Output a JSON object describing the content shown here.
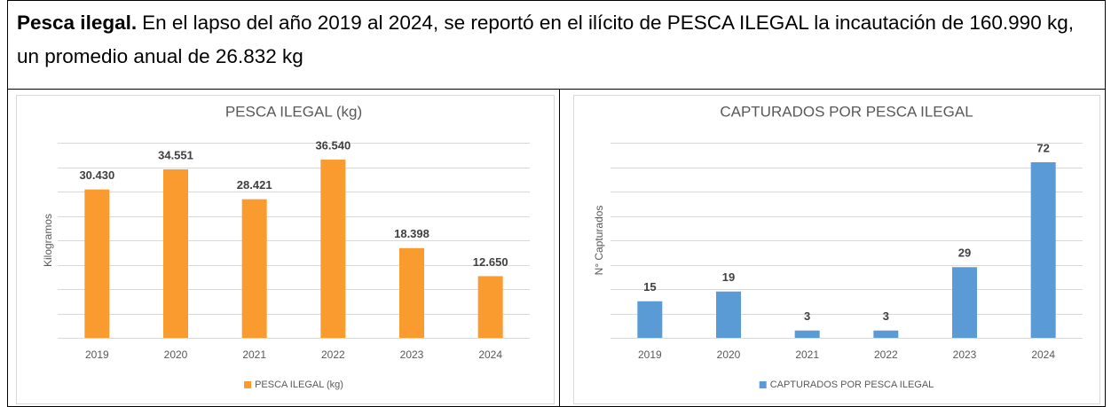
{
  "text": {
    "bold": "Pesca ilegal.",
    "body": "En el lapso del año 2019 al 2024, se reportó en el ilícito de PESCA ILEGAL la incautación de 160.990 kg, un promedio anual de 26.832 kg"
  },
  "chart_data": [
    {
      "type": "bar",
      "title": "PESCA ILEGAL (kg)",
      "y_label": "Kilogramos",
      "categories": [
        "2019",
        "2020",
        "2021",
        "2022",
        "2023",
        "2024"
      ],
      "series": [
        {
          "name": "PESCA ILEGAL (kg)",
          "color": "#f99b2e",
          "values": [
            30430,
            34551,
            28421,
            36540,
            18398,
            12650
          ],
          "value_labels": [
            "30.430",
            "34.551",
            "28.421",
            "36.540",
            "18.398",
            "12.650"
          ]
        }
      ],
      "ylim": [
        0,
        40000
      ],
      "yticks": [
        0,
        5000,
        10000,
        15000,
        20000,
        25000,
        30000,
        35000,
        40000
      ],
      "grid": true,
      "legend": "bottom"
    },
    {
      "type": "bar",
      "title": "CAPTURADOS POR PESCA ILEGAL",
      "y_label": "N° Capturados",
      "categories": [
        "2019",
        "2020",
        "2021",
        "2022",
        "2023",
        "2024"
      ],
      "series": [
        {
          "name": "CAPTURADOS POR PESCA ILEGAL",
          "color": "#5b9bd5",
          "values": [
            15,
            19,
            3,
            3,
            29,
            72
          ]
        }
      ],
      "ylim": [
        0,
        80
      ],
      "yticks": [
        0,
        10,
        20,
        30,
        40,
        50,
        60,
        70,
        80
      ],
      "grid": true,
      "legend": "bottom"
    }
  ]
}
